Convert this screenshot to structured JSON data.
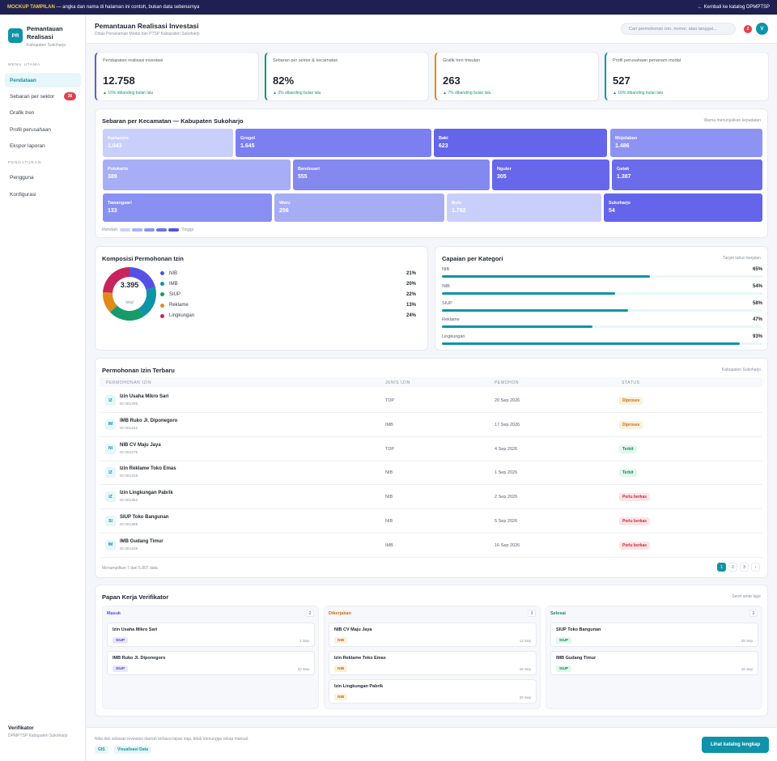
{
  "banner": {
    "mockup_label": "MOCKUP TAMPILAN",
    "mockup_text": " — angka dan nama di halaman ini contoh, bukan data sebenarnya",
    "back_link": "← Kembali ke katalog DPMPTSP"
  },
  "sidebar": {
    "logo_text": "PR",
    "app_name": "Pemantauan Realisasi",
    "app_sub": "Kabupaten Sukoharjo",
    "section_main": "MENU UTAMA",
    "section_settings": "PENGATURAN",
    "items": [
      {
        "label": "Pendataan",
        "active": true
      },
      {
        "label": "Sebaran per sektor",
        "badge": "36"
      },
      {
        "label": "Grafik tren"
      },
      {
        "label": "Profil perusahaan"
      },
      {
        "label": "Ekspor laporan"
      }
    ],
    "settings_items": [
      {
        "label": "Pengguna"
      },
      {
        "label": "Konfigurasi"
      }
    ],
    "user_role": "Verifikator",
    "user_org": "DPMPTSP Kabupaten Sukoharjo"
  },
  "header": {
    "title": "Pemantauan Realisasi Investasi",
    "subtitle": "Dinas Penanaman Modal dan PTSP Kabupaten Sukoharjo",
    "search_placeholder": "Cari permohonan izin, nomor, atau tanggal...",
    "notif_count": "2",
    "avatar_initial": "V"
  },
  "kpis": [
    {
      "title": "Pendapatan realisasi investasi",
      "value": "12.758",
      "delta": "▲ 15% dibanding bulan lalu",
      "color": "#5b5bd6"
    },
    {
      "title": "Sebaran per sektor & kecamatan",
      "value": "82%",
      "delta": "▲ 3% dibanding bulan lalu",
      "color": "#159a6a"
    },
    {
      "title": "Grafik tren triwulan",
      "value": "263",
      "delta": "▲ 7% dibanding bulan lalu",
      "color": "#e08a1b"
    },
    {
      "title": "Profil perusahaan penanam modal",
      "value": "527",
      "delta": "▲ 16% dibanding bulan lalu",
      "color": "#0e93a8"
    }
  ],
  "treemap": {
    "title": "Sebaran per Kecamatan — Kabupaten Sukoharjo",
    "note": "Warna menunjukkan kepadatan",
    "legend_low": "Rendah",
    "legend_high": "Tinggi",
    "legend_colors": [
      "#c9cffb",
      "#aab2f6",
      "#8d93f0",
      "#6f72ea",
      "#5552e3"
    ],
    "tiles": [
      {
        "name": "Kartasura",
        "value": "1.043",
        "color": "#c9cffb"
      },
      {
        "name": "Grogol",
        "value": "1.645",
        "color": "#7c7ff0"
      },
      {
        "name": "Baki",
        "value": "623",
        "color": "#6465ea"
      },
      {
        "name": "Mojolaban",
        "value": "1.486",
        "color": "#8d93f2"
      },
      {
        "name": "Polokarto",
        "value": "389",
        "color": "#a7aef6"
      },
      {
        "name": "Bendosari",
        "value": "555",
        "color": "#8489f0"
      },
      {
        "name": "Nguter",
        "value": "305",
        "color": "#6667ea"
      },
      {
        "name": "Gatak",
        "value": "1.387",
        "color": "#6a6cea"
      },
      {
        "name": "Tawangsari",
        "value": "133",
        "color": "#8a90f1"
      },
      {
        "name": "Weru",
        "value": "256",
        "color": "#a6adf5"
      },
      {
        "name": "Bulu",
        "value": "1.792",
        "color": "#c9cffb"
      },
      {
        "name": "Sukoharjo",
        "value": "54",
        "color": "#6465ea"
      }
    ]
  },
  "chart_data": [
    {
      "type": "pie",
      "title": "Komposisi Permohonan Izin",
      "center_value": "3.395",
      "center_label": "total",
      "categories": [
        "NIB",
        "IMB",
        "SIUP",
        "Reklame",
        "Lingkungan"
      ],
      "values": [
        21,
        20,
        22,
        13,
        24
      ],
      "labels": [
        "21%",
        "20%",
        "22%",
        "13%",
        "24%"
      ],
      "colors": [
        "#5552e3",
        "#0e93a8",
        "#159a6a",
        "#e08a1b",
        "#c8245c"
      ]
    },
    {
      "type": "bar",
      "title": "Capaian per Kategori",
      "note": "Target tahun berjalan",
      "categories": [
        "NIB",
        "IMB",
        "SIUP",
        "Reklame",
        "Lingkungan"
      ],
      "values": [
        65,
        54,
        58,
        47,
        93
      ],
      "labels": [
        "65%",
        "54%",
        "58%",
        "47%",
        "93%"
      ],
      "ylim": [
        0,
        100
      ]
    }
  ],
  "table": {
    "title": "Permohonan Izin Terbaru",
    "note": "Kabupaten Sukoharjo",
    "columns": [
      "PERMOHONAN IZIN",
      "JENIS IZIN",
      "PEMOHON",
      "STATUS"
    ],
    "rows": [
      {
        "icon": "IZ",
        "name": "Izin Usaha Mikro Sari",
        "id": "ID 001206",
        "type": "TDP",
        "date": "20 Sep 2026",
        "status": "Diproses"
      },
      {
        "icon": "IM",
        "name": "IMB Ruko Jl. Diponegoro",
        "id": "ID 001241",
        "type": "IMB",
        "date": "17 Sep 2026",
        "status": "Diproses"
      },
      {
        "icon": "NI",
        "name": "NIB CV Maju Jaya",
        "id": "ID 001276",
        "type": "TDP",
        "date": "4 Sep 2026",
        "status": "Terbit"
      },
      {
        "icon": "IZ",
        "name": "Izin Reklame Toko Emas",
        "id": "ID 001316",
        "type": "NIB",
        "date": "1 Sep 2026",
        "status": "Terbit"
      },
      {
        "icon": "IZ",
        "name": "Izin Lingkungan Pabrik",
        "id": "ID 001352",
        "type": "NIB",
        "date": "2 Sep 2026",
        "status": "Perlu berkas"
      },
      {
        "icon": "SI",
        "name": "SIUP Toko Bangunan",
        "id": "ID 001389",
        "type": "NIB",
        "date": "5 Sep 2026",
        "status": "Perlu berkas"
      },
      {
        "icon": "IM",
        "name": "IMB Gudang Timur",
        "id": "ID 001426",
        "type": "IMB",
        "date": "16 Sep 2026",
        "status": "Perlu berkas"
      }
    ],
    "footer": "Menampilkan 7 dari 5.807 data",
    "pages": [
      "1",
      "2",
      "3",
      "›"
    ]
  },
  "status_colors": {
    "Diproses": {
      "bg": "#fdf0dc",
      "fg": "#c07110"
    },
    "Terbit": {
      "bg": "#e2f6ec",
      "fg": "#138a5e"
    },
    "Perlu berkas": {
      "bg": "#fde4e6",
      "fg": "#c92a3a"
    }
  },
  "kanban": {
    "title": "Papan Kerja Verifikator",
    "note": "Seret antar lajur",
    "columns": [
      {
        "title": "Masuk",
        "count": "2",
        "color": "#5552e3",
        "cards": [
          {
            "name": "Izin Usaha Mikro Sari",
            "tag": "SIUP",
            "date": "1 Sep"
          },
          {
            "name": "IMB Ruko Jl. Diponegoro",
            "tag": "SIUP",
            "date": "22 Sep"
          }
        ]
      },
      {
        "title": "Dikerjakan",
        "count": "3",
        "color": "#c07110",
        "cards": [
          {
            "name": "NIB CV Maju Jaya",
            "tag": "NIB",
            "date": "12 Sep"
          },
          {
            "name": "Izin Reklame Toko Emas",
            "tag": "NIB",
            "date": "15 Sep"
          },
          {
            "name": "Izin Lingkungan Pabrik",
            "tag": "NIB",
            "date": "25 Sep"
          }
        ]
      },
      {
        "title": "Selesai",
        "count": "2",
        "color": "#138a5e",
        "cards": [
          {
            "name": "SIUP Toko Bangunan",
            "tag": "SIUP",
            "date": "25 Sep"
          },
          {
            "name": "IMB Gudang Timur",
            "tag": "SIUP",
            "date": "16 Sep"
          }
        ]
      }
    ]
  },
  "tag_colors": {
    "SIUP": {
      "bg": "#e8e8fc",
      "fg": "#4a47d6"
    },
    "NIB": {
      "bg": "#fdf0dc",
      "fg": "#c07110"
    },
    "SIUP_done": {
      "bg": "#e2f6ec",
      "fg": "#138a5e"
    }
  },
  "footer": {
    "note": "Nilai dan sebaran investasi daerah terbaca lapan saja, tidak menunggu rekap manual.",
    "chips": [
      "GIS",
      "Visualisasi Data"
    ],
    "cta": "Lihat katalog lengkap"
  }
}
